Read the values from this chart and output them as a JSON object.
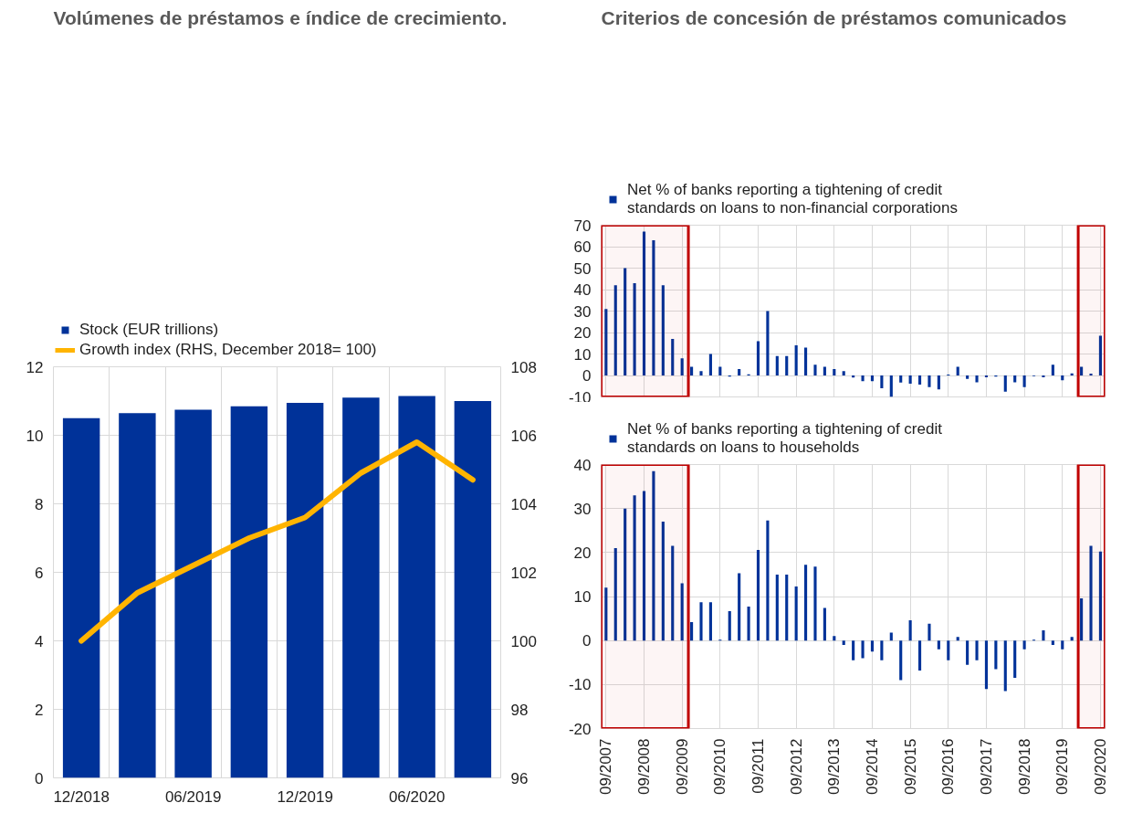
{
  "chart_data": [
    {
      "type": "bar",
      "title": "Volúmenes de préstamos e índice de crecimiento.",
      "categories": [
        "12/2018",
        null,
        "06/2019",
        null,
        "12/2019",
        null,
        "06/2020",
        null
      ],
      "series": [
        {
          "name": "Stock (EUR trillions)",
          "color": "#003299",
          "values": [
            10.5,
            10.65,
            10.75,
            10.85,
            10.95,
            11.1,
            11.15,
            11.0
          ]
        },
        {
          "name": "Growth index (RHS, December 2018= 100)",
          "type": "line",
          "axis": "y2",
          "color": "#ffb400",
          "values": [
            100,
            101.4,
            102.2,
            103.0,
            103.6,
            104.9,
            105.8,
            104.7
          ]
        }
      ],
      "ylim": [
        0,
        12
      ],
      "yticks": [
        0,
        2,
        4,
        6,
        8,
        10,
        12
      ],
      "y2lim": [
        96,
        108
      ],
      "y2ticks": [
        96,
        98,
        100,
        102,
        104,
        106,
        108
      ],
      "grid": true,
      "legend": "top left"
    },
    {
      "type": "bar",
      "title": "Criterios de concesión de préstamos comunicados",
      "x": [
        "2007-09",
        "2007-12",
        "2008-03",
        "2008-06",
        "2008-09",
        "2008-12",
        "2009-03",
        "2009-06",
        "2009-09",
        "2009-12",
        "2010-03",
        "2010-06",
        "2010-09",
        "2010-12",
        "2011-03",
        "2011-06",
        "2011-09",
        "2011-12",
        "2012-03",
        "2012-06",
        "2012-09",
        "2012-12",
        "2013-03",
        "2013-06",
        "2013-09",
        "2013-12",
        "2014-03",
        "2014-06",
        "2014-09",
        "2014-12",
        "2015-03",
        "2015-06",
        "2015-09",
        "2015-12",
        "2016-03",
        "2016-06",
        "2016-09",
        "2016-12",
        "2017-03",
        "2017-06",
        "2017-09",
        "2017-12",
        "2018-03",
        "2018-06",
        "2018-09",
        "2018-12",
        "2019-03",
        "2019-06",
        "2019-09",
        "2019-12",
        "2020-03",
        "2020-06",
        "2020-09"
      ],
      "series": [
        {
          "name": "Net % of banks reporting a tightening of credit standards on loans to non-financial corporations",
          "color": "#003299",
          "values": [
            31,
            42,
            50,
            43,
            67,
            63,
            42,
            17,
            8,
            4,
            2,
            10,
            4,
            -0.5,
            3,
            0.5,
            16,
            30,
            9,
            9,
            14,
            13,
            5,
            4,
            3,
            2,
            -1,
            -2.7,
            -2.7,
            -6,
            -10,
            -3.3,
            -3.8,
            -4.3,
            -5.4,
            -6.5,
            0.4,
            4,
            -1.6,
            -3.2,
            -0.8,
            -0.5,
            -7.5,
            -3.2,
            -5.4,
            -0.3,
            -0.8,
            5,
            -2.2,
            1,
            4,
            0.8,
            18.5
          ]
        }
      ],
      "xlim": [
        "2007-07-15",
        "2020-10-15"
      ],
      "xticks": [
        {
          "value": "2007-09",
          "label": null
        },
        {
          "value": "2008-09",
          "label": null
        },
        {
          "value": "2009-09",
          "label": null
        },
        {
          "value": "2010-09",
          "label": null
        },
        {
          "value": "2011-09",
          "label": null
        },
        {
          "value": "2012-09",
          "label": null
        },
        {
          "value": "2013-09",
          "label": null
        },
        {
          "value": "2014-09",
          "label": null
        },
        {
          "value": "2015-09",
          "label": null
        },
        {
          "value": "2016-09",
          "label": null
        },
        {
          "value": "2017-09",
          "label": null
        },
        {
          "value": "2018-09",
          "label": null
        },
        {
          "value": "2019-09",
          "label": null
        },
        {
          "value": "2020-09",
          "label": null
        }
      ],
      "ylim": [
        -10,
        70
      ],
      "yticks": [
        -10,
        0,
        10,
        20,
        30,
        40,
        50,
        60,
        70
      ],
      "bands": [
        {
          "axis": "x",
          "from": "2007-07-15",
          "to": "2009-10-31",
          "color": "#c00000"
        },
        {
          "axis": "x",
          "from": "2020-01-31",
          "to": "2020-10-15",
          "color": "#c00000"
        }
      ],
      "grid": true,
      "legend": "top left",
      "tick_labels": "y"
    },
    {
      "type": "bar",
      "x": [
        "2007-09",
        "2007-12",
        "2008-03",
        "2008-06",
        "2008-09",
        "2008-12",
        "2009-03",
        "2009-06",
        "2009-09",
        "2009-12",
        "2010-03",
        "2010-06",
        "2010-09",
        "2010-12",
        "2011-03",
        "2011-06",
        "2011-09",
        "2011-12",
        "2012-03",
        "2012-06",
        "2012-09",
        "2012-12",
        "2013-03",
        "2013-06",
        "2013-09",
        "2013-12",
        "2014-03",
        "2014-06",
        "2014-09",
        "2014-12",
        "2015-03",
        "2015-06",
        "2015-09",
        "2015-12",
        "2016-03",
        "2016-06",
        "2016-09",
        "2016-12",
        "2017-03",
        "2017-06",
        "2017-09",
        "2017-12",
        "2018-03",
        "2018-06",
        "2018-09",
        "2018-12",
        "2019-03",
        "2019-06",
        "2019-09",
        "2019-12",
        "2020-03",
        "2020-06",
        "2020-09"
      ],
      "series": [
        {
          "name": "Net % of banks reporting a tightening of credit standards on loans to households",
          "color": "#003299",
          "values": [
            12,
            21,
            30,
            33,
            34,
            38.5,
            27,
            21.5,
            13,
            4.2,
            8.7,
            8.7,
            0.2,
            6.7,
            15.3,
            7.7,
            20.6,
            27.3,
            15,
            15,
            12.3,
            17.2,
            16.8,
            7.4,
            1,
            -1,
            -4.5,
            -4,
            -2.5,
            -4.5,
            1.8,
            -9,
            4.6,
            -6.8,
            3.8,
            -2,
            -4.5,
            0.8,
            -5.5,
            -4.5,
            -11,
            -6.5,
            -11.5,
            -8.5,
            -2,
            0.2,
            2.3,
            -1,
            -2,
            0.8,
            9.6,
            21.5,
            20.2
          ]
        }
      ],
      "xlim": [
        "2007-07-15",
        "2020-10-15"
      ],
      "xticks": [
        {
          "value": "2007-09",
          "label": "09/2007"
        },
        {
          "value": "2008-09",
          "label": "09/2008"
        },
        {
          "value": "2009-09",
          "label": "09/2009"
        },
        {
          "value": "2010-09",
          "label": "09/2010"
        },
        {
          "value": "2011-09",
          "label": "09/2011"
        },
        {
          "value": "2012-09",
          "label": "09/2012"
        },
        {
          "value": "2013-09",
          "label": "09/2013"
        },
        {
          "value": "2014-09",
          "label": "09/2014"
        },
        {
          "value": "2015-09",
          "label": "09/2015"
        },
        {
          "value": "2016-09",
          "label": "09/2016"
        },
        {
          "value": "2017-09",
          "label": "09/2017"
        },
        {
          "value": "2018-09",
          "label": "09/2018"
        },
        {
          "value": "2019-09",
          "label": "09/2019"
        },
        {
          "value": "2020-09",
          "label": "09/2020"
        }
      ],
      "ylim": [
        -20,
        40
      ],
      "yticks": [
        -20,
        -10,
        0,
        10,
        20,
        30,
        40
      ],
      "bands": [
        {
          "axis": "x",
          "from": "2007-07-15",
          "to": "2009-10-31",
          "color": "#c00000"
        },
        {
          "axis": "x",
          "from": "2020-01-31",
          "to": "2020-10-15",
          "color": "#c00000"
        }
      ],
      "grid": true,
      "legend": "top left"
    }
  ]
}
